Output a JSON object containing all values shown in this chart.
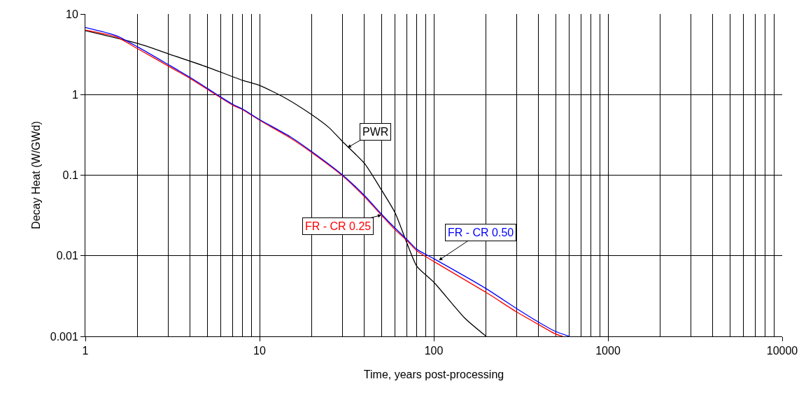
{
  "chart_data": {
    "type": "line",
    "xlabel": "Time, years post-processing",
    "ylabel": "Decay Heat (W/GWd)",
    "log": "xy",
    "grid": true,
    "marker": "none",
    "line_style": "solid",
    "xlim": [
      1,
      10000
    ],
    "xticks": [
      1,
      10,
      100,
      1000,
      10000
    ],
    "ylim": [
      0.001,
      10
    ],
    "yticks": [
      0.001,
      0.01,
      0.1,
      1,
      10
    ],
    "series": [
      {
        "color": "#000000",
        "x": [
          1,
          2,
          3,
          5,
          8,
          10,
          14,
          20,
          25,
          30,
          40,
          50,
          60,
          70,
          80,
          100,
          150,
          200
        ],
        "values": [
          6.2,
          4.3,
          3.2,
          2.2,
          1.5,
          1.3,
          0.91,
          0.56,
          0.39,
          0.26,
          0.14,
          0.066,
          0.034,
          0.0145,
          0.0074,
          0.0047,
          0.0017,
          0.001
        ]
      },
      {
        "color": "#ff0000",
        "x": [
          1,
          1.5,
          2,
          3,
          4,
          5,
          6,
          7,
          8,
          10,
          15,
          20,
          30,
          40,
          50,
          60,
          70,
          80,
          100,
          200,
          300,
          400,
          500,
          550
        ],
        "values": [
          6.3,
          5.2,
          3.7,
          2.25,
          1.58,
          1.17,
          0.91,
          0.74,
          0.65,
          0.48,
          0.29,
          0.19,
          0.098,
          0.054,
          0.032,
          0.021,
          0.0155,
          0.0115,
          0.0085,
          0.0035,
          0.002,
          0.0014,
          0.00107,
          0.001
        ]
      },
      {
        "color": "#0000ff",
        "x": [
          1,
          1.5,
          2,
          3,
          4,
          5,
          6,
          7,
          8,
          10,
          15,
          20,
          30,
          40,
          50,
          60,
          70,
          80,
          100,
          200,
          300,
          400,
          500,
          600
        ],
        "values": [
          6.8,
          5.4,
          3.9,
          2.35,
          1.63,
          1.2,
          0.93,
          0.76,
          0.66,
          0.49,
          0.3,
          0.195,
          0.1,
          0.056,
          0.033,
          0.022,
          0.016,
          0.012,
          0.0092,
          0.0039,
          0.0022,
          0.0015,
          0.00115,
          0.001
        ]
      }
    ],
    "annotations": [
      {
        "text": "PWR",
        "x": 32,
        "y": 0.22
      },
      {
        "text": "FR - CR 0.25",
        "x": 50,
        "y": 0.032
      },
      {
        "text": "FR - CR 0.50",
        "x": 107,
        "y": 0.0088
      }
    ]
  }
}
